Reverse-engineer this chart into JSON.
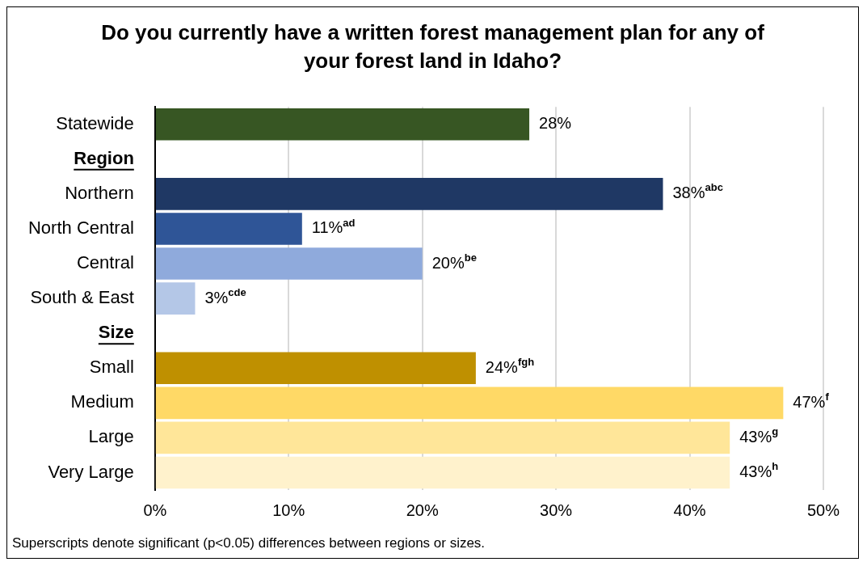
{
  "chart_data": {
    "type": "bar",
    "orientation": "horizontal",
    "title": "Do you currently have a written forest management plan for any of your forest land in Idaho?",
    "categories": [
      "Statewide",
      "Region",
      "Northern",
      "North Central",
      "Central",
      "South & East",
      "Size",
      "Small",
      "Medium",
      "Large",
      "Very Large"
    ],
    "values": [
      28,
      null,
      38,
      11,
      20,
      3,
      null,
      24,
      47,
      43,
      43
    ],
    "colors": [
      "#375623",
      null,
      "#1f3864",
      "#2f5597",
      "#8faadc",
      "#b4c7e7",
      null,
      "#bf9000",
      "#ffd966",
      "#ffe699",
      "#fff2cc"
    ],
    "value_labels": [
      "28%",
      null,
      "38%$^{abc}$",
      "11%$^{ad}$",
      "20%$^{be}$",
      "3%$^{cde}$",
      null,
      "24%$^{fgh}$",
      "47%$^{f}$",
      "43%$^{g}$",
      "43%$^{h}$"
    ],
    "xlim": [
      0,
      50
    ],
    "xticks": [
      {
        "value": 0,
        "label": "0%"
      },
      {
        "value": 10,
        "label": "10%"
      },
      {
        "value": 20,
        "label": "20%"
      },
      {
        "value": 30,
        "label": "30%"
      },
      {
        "value": 40,
        "label": "40%"
      },
      {
        "value": 50,
        "label": "50%"
      }
    ],
    "grid": "x",
    "legend": false,
    "annotations": [
      "Superscripts denote significant (p<0.05) differences between regions or sizes."
    ]
  }
}
